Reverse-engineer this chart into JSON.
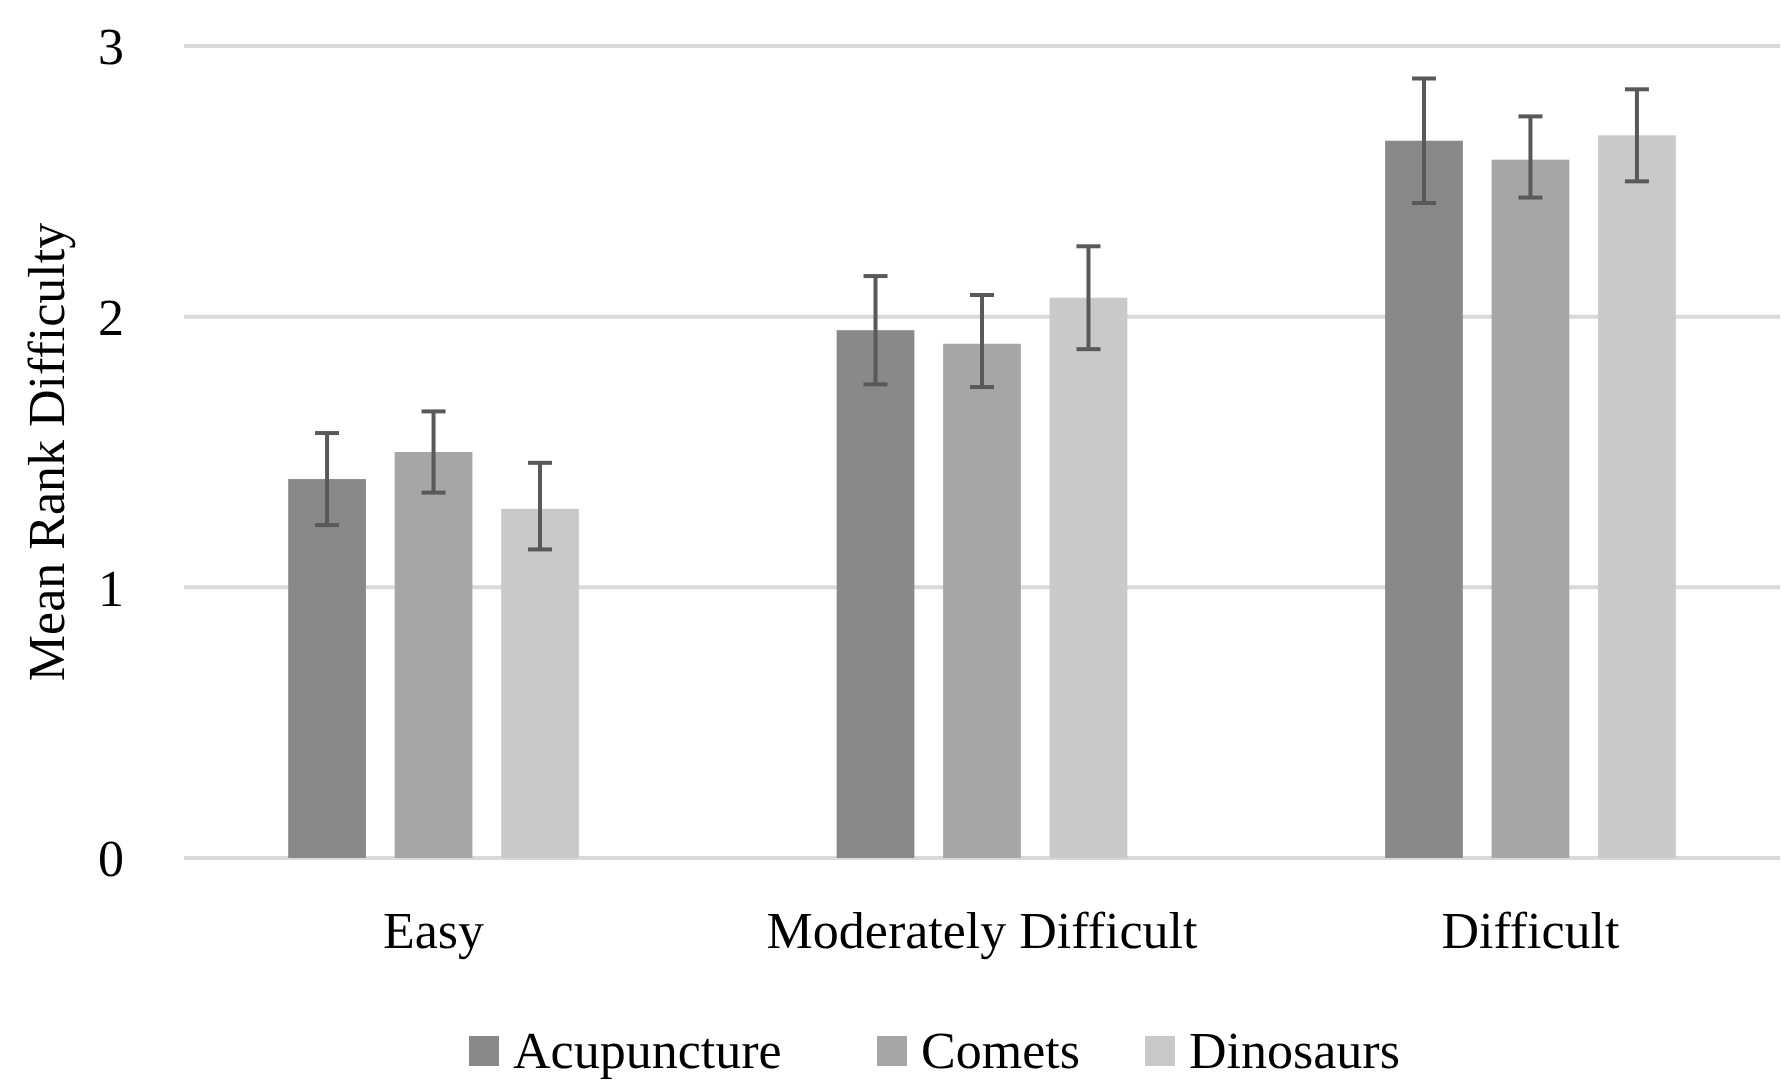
{
  "chart_data": {
    "type": "bar",
    "ylabel": "Mean Rank Difficulty",
    "categories": [
      "Easy",
      "Moderately Difficult",
      "Difficult"
    ],
    "series": [
      {
        "name": "Acupuncture",
        "color": "#898989",
        "values": [
          1.4,
          1.95,
          2.65
        ],
        "errors": [
          [
            1.23,
            1.57
          ],
          [
            1.75,
            2.15
          ],
          [
            2.42,
            2.88
          ]
        ]
      },
      {
        "name": "Comets",
        "color": "#a6a6a6",
        "values": [
          1.5,
          1.9,
          2.58
        ],
        "errors": [
          [
            1.35,
            1.65
          ],
          [
            1.74,
            2.08
          ],
          [
            2.44,
            2.74
          ]
        ]
      },
      {
        "name": "Dinosaurs",
        "color": "#c9c9c9",
        "values": [
          1.29,
          2.07,
          2.67
        ],
        "errors": [
          [
            1.14,
            1.46
          ],
          [
            1.88,
            2.26
          ],
          [
            2.5,
            2.84
          ]
        ]
      }
    ],
    "ylim": [
      0,
      3
    ],
    "yticks": [
      0,
      1,
      2,
      3
    ],
    "grid": "y",
    "legend": "bottom"
  }
}
